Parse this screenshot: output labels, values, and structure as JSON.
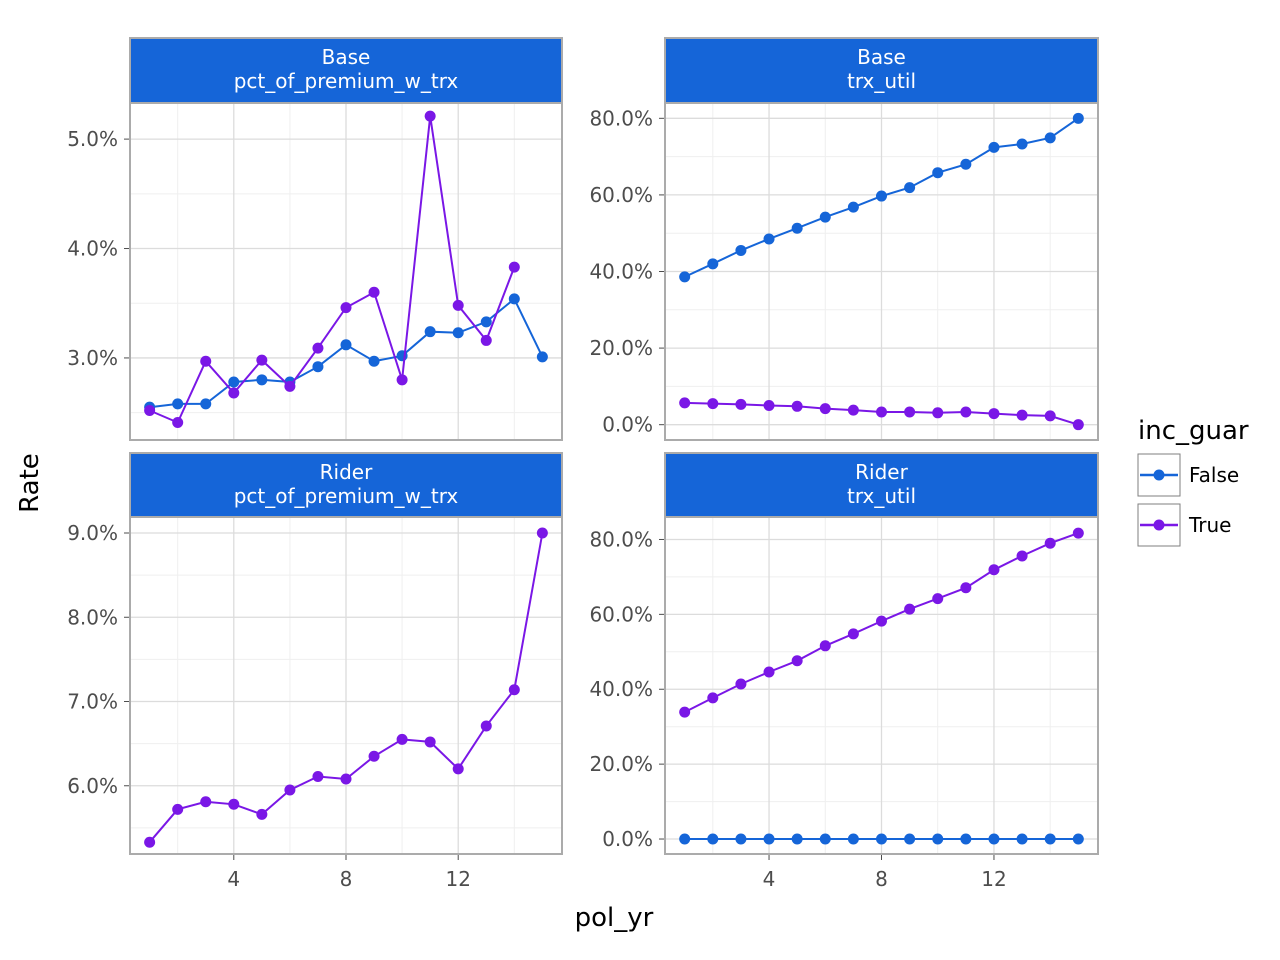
{
  "chart_data": {
    "type": "line",
    "xlabel": "pol_yr",
    "ylabel": "Rate",
    "legend": {
      "title": "inc_guar",
      "placement": "right",
      "entries": [
        "False",
        "True"
      ]
    },
    "colors": {
      "False": "#1565D8",
      "True": "#7A17E6",
      "strip": "#1565D8",
      "grid": "#dcdcdc",
      "border": "#ababab"
    },
    "grid": true,
    "xticks": [
      "4",
      "8",
      "12"
    ],
    "xlim": [
      0.3,
      15.7
    ],
    "panels": [
      {
        "strip": [
          "Base",
          "pct_of_premium_w_trx"
        ],
        "ylim": [
          2.25,
          5.33
        ],
        "yticks": [
          3.0,
          4.0,
          5.0
        ],
        "ytick_labels": [
          "3.0%",
          "4.0%",
          "5.0%"
        ],
        "series": [
          {
            "name": "False",
            "x": [
              1,
              2,
              3,
              4,
              5,
              6,
              7,
              8,
              9,
              10,
              11,
              12,
              13,
              14,
              15
            ],
            "values": [
              2.55,
              2.58,
              2.58,
              2.78,
              2.8,
              2.78,
              2.92,
              3.12,
              2.97,
              3.02,
              3.24,
              3.23,
              3.33,
              3.54,
              3.01
            ]
          },
          {
            "name": "True",
            "x": [
              1,
              2,
              3,
              4,
              5,
              6,
              7,
              8,
              9,
              10,
              11,
              12,
              13,
              14
            ],
            "values": [
              2.52,
              2.41,
              2.97,
              2.68,
              2.98,
              2.74,
              3.09,
              3.46,
              3.6,
              2.8,
              5.21,
              3.48,
              3.16,
              3.83
            ]
          }
        ]
      },
      {
        "strip": [
          "Base",
          "trx_util"
        ],
        "ylim": [
          -4.0,
          84.0
        ],
        "yticks": [
          0,
          20,
          40,
          60,
          80
        ],
        "ytick_labels": [
          "0.0%",
          "20.0%",
          "40.0%",
          "60.0%",
          "80.0%"
        ],
        "series": [
          {
            "name": "False",
            "x": [
              1,
              2,
              3,
              4,
              5,
              6,
              7,
              8,
              9,
              10,
              11,
              12,
              13,
              14,
              15
            ],
            "values": [
              38.6,
              42.0,
              45.5,
              48.5,
              51.3,
              54.2,
              56.8,
              59.7,
              61.9,
              65.8,
              68.0,
              72.4,
              73.3,
              74.9,
              80.0
            ]
          },
          {
            "name": "True",
            "x": [
              1,
              2,
              3,
              4,
              5,
              6,
              7,
              8,
              9,
              10,
              11,
              12,
              13,
              14,
              15
            ],
            "values": [
              5.7,
              5.5,
              5.3,
              5.0,
              4.8,
              4.2,
              3.8,
              3.3,
              3.3,
              3.1,
              3.3,
              2.9,
              2.5,
              2.3,
              0.0
            ]
          }
        ]
      },
      {
        "strip": [
          "Rider",
          "pct_of_premium_w_trx"
        ],
        "ylim": [
          5.19,
          9.19
        ],
        "yticks": [
          6.0,
          7.0,
          8.0,
          9.0
        ],
        "ytick_labels": [
          "6.0%",
          "7.0%",
          "8.0%",
          "9.0%"
        ],
        "series": [
          {
            "name": "True",
            "x": [
              1,
              2,
              3,
              4,
              5,
              6,
              7,
              8,
              9,
              10,
              11,
              12,
              13,
              14,
              15
            ],
            "values": [
              5.33,
              5.72,
              5.81,
              5.78,
              5.66,
              5.95,
              6.11,
              6.08,
              6.35,
              6.55,
              6.52,
              6.2,
              6.71,
              7.14,
              9.0
            ]
          }
        ]
      },
      {
        "strip": [
          "Rider",
          "trx_util"
        ],
        "ylim": [
          -4.0,
          86.0
        ],
        "yticks": [
          0,
          20,
          40,
          60,
          80
        ],
        "ytick_labels": [
          "0.0%",
          "20.0%",
          "40.0%",
          "60.0%",
          "80.0%"
        ],
        "series": [
          {
            "name": "False",
            "x": [
              1,
              2,
              3,
              4,
              5,
              6,
              7,
              8,
              9,
              10,
              11,
              12,
              13,
              14,
              15
            ],
            "values": [
              0,
              0,
              0,
              0,
              0,
              0,
              0,
              0,
              0,
              0,
              0,
              0,
              0,
              0,
              0
            ]
          },
          {
            "name": "True",
            "x": [
              1,
              2,
              3,
              4,
              5,
              6,
              7,
              8,
              9,
              10,
              11,
              12,
              13,
              14,
              15
            ],
            "values": [
              33.9,
              37.7,
              41.4,
              44.6,
              47.6,
              51.6,
              54.8,
              58.2,
              61.4,
              64.2,
              67.1,
              71.9,
              75.6,
              79.0,
              81.7
            ]
          }
        ]
      }
    ]
  }
}
